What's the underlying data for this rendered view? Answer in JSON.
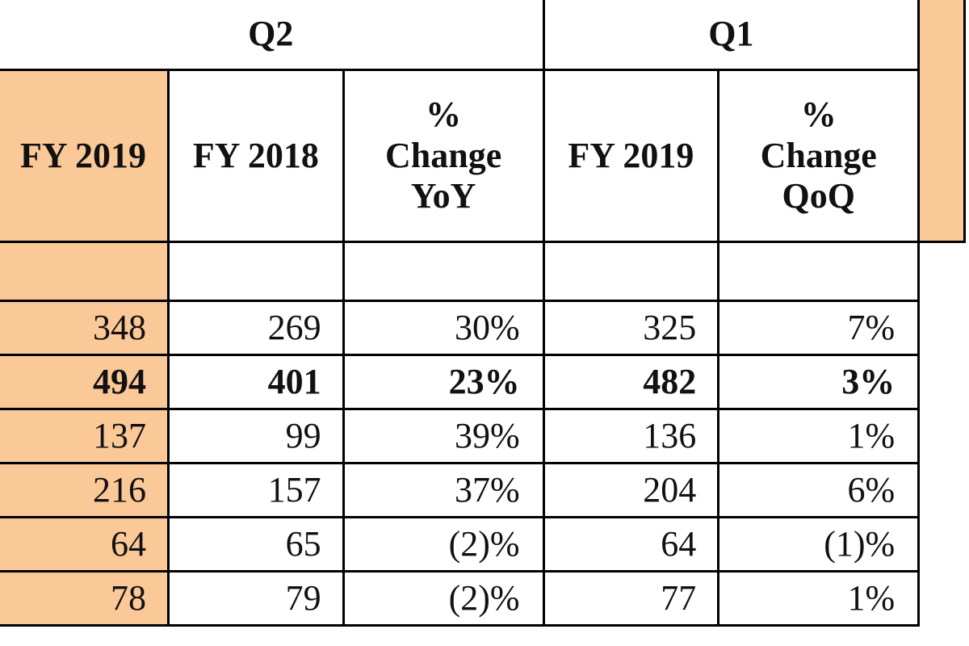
{
  "groups": [
    "Q2",
    "Q1"
  ],
  "columns": [
    {
      "lines": [
        "FY 2019"
      ]
    },
    {
      "lines": [
        "FY 2018"
      ]
    },
    {
      "lines": [
        "%",
        "Change",
        "YoY"
      ]
    },
    {
      "lines": [
        "FY 2019"
      ]
    },
    {
      "lines": [
        "%",
        "Change",
        "QoQ"
      ]
    }
  ],
  "rows": [
    {
      "bold": false,
      "cells": [
        "348",
        "269",
        "30%",
        "325",
        "7%"
      ]
    },
    {
      "bold": true,
      "cells": [
        "494",
        "401",
        "23%",
        "482",
        "3%"
      ]
    },
    {
      "bold": false,
      "cells": [
        "137",
        "99",
        "39%",
        "136",
        "1%"
      ]
    },
    {
      "bold": false,
      "cells": [
        "216",
        "157",
        "37%",
        "204",
        "6%"
      ]
    },
    {
      "bold": false,
      "cells": [
        "64",
        "65",
        "(2)%",
        "64",
        "(1)%"
      ]
    },
    {
      "bold": false,
      "cells": [
        "78",
        "79",
        "(2)%",
        "77",
        "1%"
      ]
    }
  ],
  "colors": {
    "highlight": "#fbc898"
  }
}
